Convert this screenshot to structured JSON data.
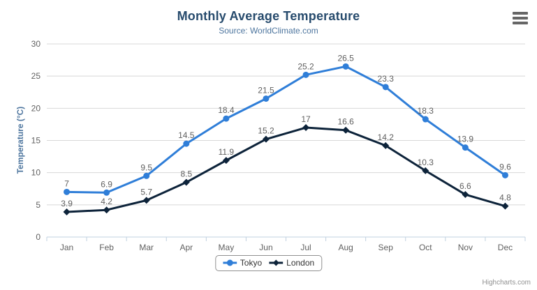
{
  "chart_data": {
    "type": "line",
    "title": "Monthly Average Temperature",
    "subtitle": "Source: WorldClimate.com",
    "xlabel": "",
    "ylabel": "Temperature (°C)",
    "categories": [
      "Jan",
      "Feb",
      "Mar",
      "Apr",
      "May",
      "Jun",
      "Jul",
      "Aug",
      "Sep",
      "Oct",
      "Nov",
      "Dec"
    ],
    "series": [
      {
        "name": "Tokyo",
        "marker": "circle",
        "color": "#2f7ed8",
        "values": [
          7,
          6.9,
          9.5,
          14.5,
          18.4,
          21.5,
          25.2,
          26.5,
          23.3,
          18.3,
          13.9,
          9.6
        ]
      },
      {
        "name": "London",
        "marker": "diamond",
        "color": "#0d233a",
        "values": [
          3.9,
          4.2,
          5.7,
          8.5,
          11.9,
          15.2,
          17,
          16.6,
          14.2,
          10.3,
          6.6,
          4.8
        ]
      }
    ],
    "ylim": [
      0,
      30
    ],
    "ytick_step": 5,
    "grid": true,
    "data_labels": true,
    "legend_position": "bottom"
  },
  "credits": {
    "text": "Highcharts.com"
  },
  "icons": {
    "context_menu": "hamburger-menu-icon"
  },
  "colors": {
    "title": "#274b6d",
    "subtitle": "#4d759e",
    "axis_title": "#4d759e",
    "tick_label": "#606060",
    "data_label": "#606060",
    "gridline": "#d8d8d8",
    "axis_line": "#c0d0e0",
    "legend_border": "#909090",
    "legend_text": "#333333",
    "credit": "#909090",
    "menu_icon": "#666666"
  }
}
